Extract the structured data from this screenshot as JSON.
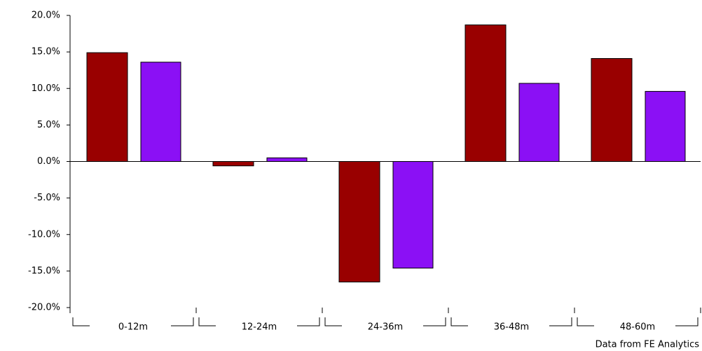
{
  "chart_data": {
    "type": "bar",
    "categories": [
      "0-12m",
      "12-24m",
      "24-36m",
      "36-48m",
      "48-60m"
    ],
    "series": [
      {
        "color": "#990000",
        "values": [
          14.9,
          -0.6,
          -16.5,
          18.7,
          14.1
        ]
      },
      {
        "color": "#8b10f5",
        "values": [
          13.6,
          0.5,
          -14.6,
          10.7,
          9.6
        ]
      }
    ],
    "ylim": [
      -20,
      20
    ],
    "yticks": [
      {
        "value": -20,
        "label": "-20.0%"
      },
      {
        "value": -15,
        "label": "-15.0%"
      },
      {
        "value": -10,
        "label": "-10.0%"
      },
      {
        "value": -5,
        "label": "-5.0%"
      },
      {
        "value": 0,
        "label": "0.0%"
      },
      {
        "value": 5,
        "label": "5.0%"
      },
      {
        "value": 10,
        "label": "10.0%"
      },
      {
        "value": 15,
        "label": "15.0%"
      },
      {
        "value": 20,
        "label": "20.0%"
      }
    ],
    "source": "Data from FE Analytics"
  }
}
